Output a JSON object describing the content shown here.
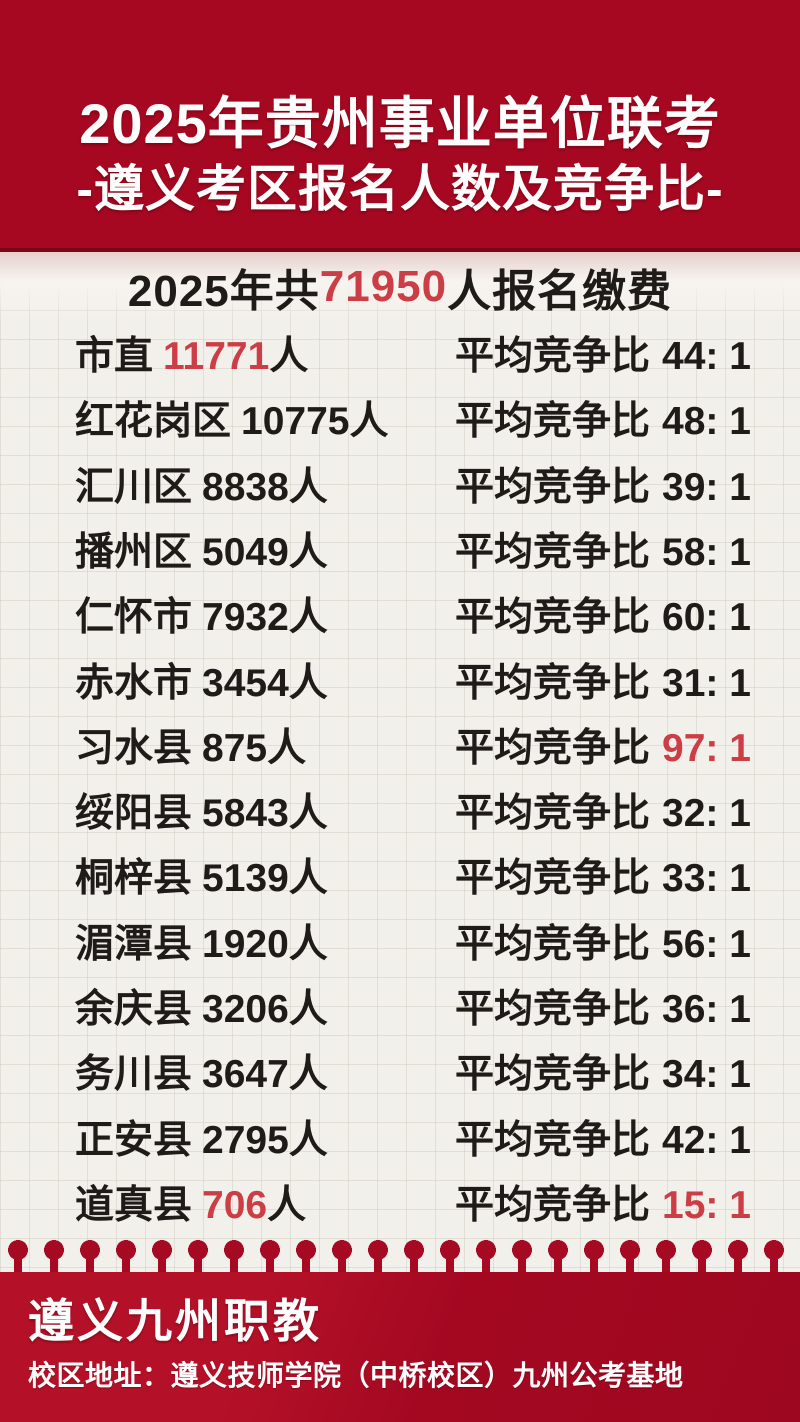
{
  "header": {
    "line1": "2025年贵州事业单位联考",
    "line2": "-遵义考区报名人数及竞争比-"
  },
  "summary": {
    "prefix": "2025年共",
    "total": "71950",
    "suffix": "人报名缴费"
  },
  "rows": [
    {
      "district": "市直",
      "count": "11771",
      "count_red": true,
      "person_suffix": "人",
      "ratio_label": "平均竞争比",
      "ratio_value": "44: 1",
      "ratio_red": false
    },
    {
      "district": "红花岗区",
      "count": "10775",
      "count_red": false,
      "person_suffix": "人",
      "ratio_label": "平均竞争比",
      "ratio_value": "48: 1",
      "ratio_red": false
    },
    {
      "district": "汇川区",
      "count": "8838",
      "count_red": false,
      "person_suffix": "人",
      "ratio_label": "平均竞争比",
      "ratio_value": "39: 1",
      "ratio_red": false
    },
    {
      "district": "播州区",
      "count": "5049",
      "count_red": false,
      "person_suffix": "人",
      "ratio_label": "平均竞争比",
      "ratio_value": "58: 1",
      "ratio_red": false
    },
    {
      "district": "仁怀市",
      "count": "7932",
      "count_red": false,
      "person_suffix": "人",
      "ratio_label": "平均竞争比",
      "ratio_value": "60: 1",
      "ratio_red": false
    },
    {
      "district": "赤水市",
      "count": "3454",
      "count_red": false,
      "person_suffix": "人",
      "ratio_label": "平均竞争比",
      "ratio_value": "31: 1",
      "ratio_red": false
    },
    {
      "district": "习水县",
      "count": "875",
      "count_red": false,
      "person_suffix": "人",
      "ratio_label": "平均竞争比",
      "ratio_value": "97: 1",
      "ratio_red": true
    },
    {
      "district": "绥阳县",
      "count": "5843",
      "count_red": false,
      "person_suffix": "人",
      "ratio_label": "平均竞争比",
      "ratio_value": "32: 1",
      "ratio_red": false
    },
    {
      "district": "桐梓县",
      "count": "5139",
      "count_red": false,
      "person_suffix": "人",
      "ratio_label": "平均竞争比",
      "ratio_value": "33: 1",
      "ratio_red": false
    },
    {
      "district": "湄潭县",
      "count": "1920",
      "count_red": false,
      "person_suffix": "人",
      "ratio_label": "平均竞争比",
      "ratio_value": "56: 1",
      "ratio_red": false
    },
    {
      "district": "余庆县",
      "count": "3206",
      "count_red": false,
      "person_suffix": "人",
      "ratio_label": "平均竞争比",
      "ratio_value": "36: 1",
      "ratio_red": false
    },
    {
      "district": "务川县",
      "count": "3647",
      "count_red": false,
      "person_suffix": "人",
      "ratio_label": "平均竞争比",
      "ratio_value": "34: 1",
      "ratio_red": false
    },
    {
      "district": "正安县",
      "count": "2795",
      "count_red": false,
      "person_suffix": "人",
      "ratio_label": "平均竞争比",
      "ratio_value": "42: 1",
      "ratio_red": false
    },
    {
      "district": "道真县",
      "count": "706",
      "count_red": true,
      "person_suffix": "人",
      "ratio_label": "平均竞争比",
      "ratio_value": "15: 1",
      "ratio_red": true
    }
  ],
  "footer": {
    "brand": "遵义九州职教",
    "address": "校区地址：遵义技师学院（中桥校区）九州公考基地"
  },
  "colors": {
    "brand_red": "#A50820",
    "accent_red": "#CC3E46",
    "paper": "#F2F0EB",
    "ink": "#1E1B19"
  }
}
